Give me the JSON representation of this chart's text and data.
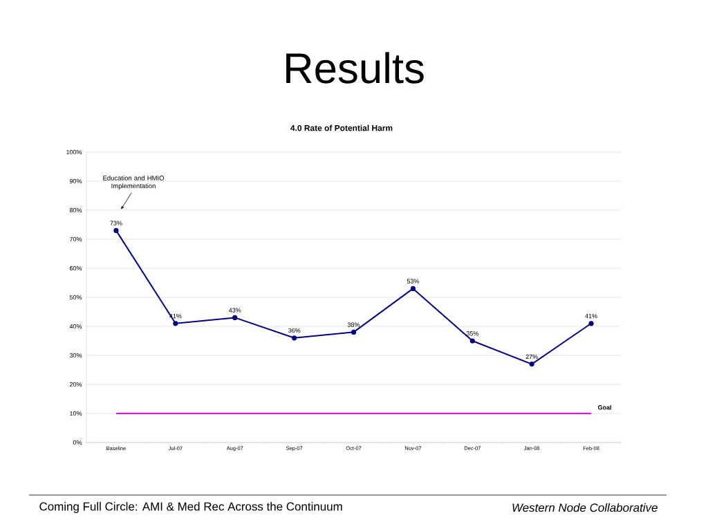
{
  "chart_data": {
    "type": "line",
    "title": "Results",
    "subtitle": "4.0 Rate of Potential Harm",
    "categories": [
      "Baseline",
      "Jul-07",
      "Aug-07",
      "Sep-07",
      "Oct-07",
      "Nov-07",
      "Dec-07",
      "Jan-08",
      "Feb-08"
    ],
    "series": [
      {
        "color": "#000080",
        "marker": "circle",
        "values": [
          73,
          41,
          43,
          36,
          38,
          53,
          35,
          27,
          41
        ],
        "value_labels": [
          "73%",
          "41%",
          "43%",
          "36%",
          "38%",
          "53%",
          "35%",
          "27%",
          "41%"
        ]
      },
      {
        "name": "Goal",
        "color": "#ff00ff",
        "marker": "none",
        "values": [
          10,
          10,
          10,
          10,
          10,
          10,
          10,
          10,
          10
        ]
      }
    ],
    "ylim": [
      0,
      100
    ],
    "yticks": [
      {
        "value": 0,
        "label": "0%"
      },
      {
        "value": 10,
        "label": "10%"
      },
      {
        "value": 20,
        "label": "20%"
      },
      {
        "value": 30,
        "label": "30%"
      },
      {
        "value": 40,
        "label": "40%"
      },
      {
        "value": 50,
        "label": "50%"
      },
      {
        "value": 60,
        "label": "60%"
      },
      {
        "value": 70,
        "label": "70%"
      },
      {
        "value": 80,
        "label": "80%"
      },
      {
        "value": 90,
        "label": "90%"
      },
      {
        "value": 100,
        "label": "100%"
      }
    ],
    "grid": "y",
    "line_style": "solid",
    "annotations": [
      "Education and HMIO Implementation",
      "Coming Full Circle:  AMI & Med Rec Across the Continuum",
      "Western Node Collaborative"
    ]
  }
}
